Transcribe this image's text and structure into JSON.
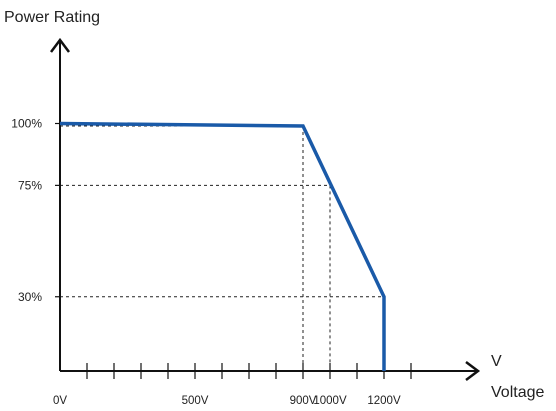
{
  "chart_data": {
    "type": "line",
    "ylabel": "Power Rating",
    "xlabel": "Voltage",
    "xunit": "V",
    "x_tick_labels": [
      {
        "value": 0,
        "label": "0V"
      },
      {
        "value": 500,
        "label": "500V"
      },
      {
        "value": 900,
        "label": "900V"
      },
      {
        "value": 1000,
        "label": "1000V"
      },
      {
        "value": 1200,
        "label": "1200V"
      }
    ],
    "y_tick_labels": [
      {
        "value": 100,
        "label": "100%"
      },
      {
        "value": 75,
        "label": "75%"
      },
      {
        "value": 30,
        "label": "30%"
      }
    ],
    "minor_tick_step": 100,
    "xlim": [
      0,
      1300
    ],
    "series": [
      {
        "x": [
          0,
          900,
          1200,
          1200
        ],
        "y": [
          100,
          99,
          30,
          0
        ],
        "color": "#1a5aa8"
      }
    ],
    "guide_lines": [
      {
        "x": 900,
        "y": 99
      },
      {
        "x": 1000,
        "y": 75
      },
      {
        "x": 1200,
        "y": 30
      }
    ],
    "grid": false
  }
}
